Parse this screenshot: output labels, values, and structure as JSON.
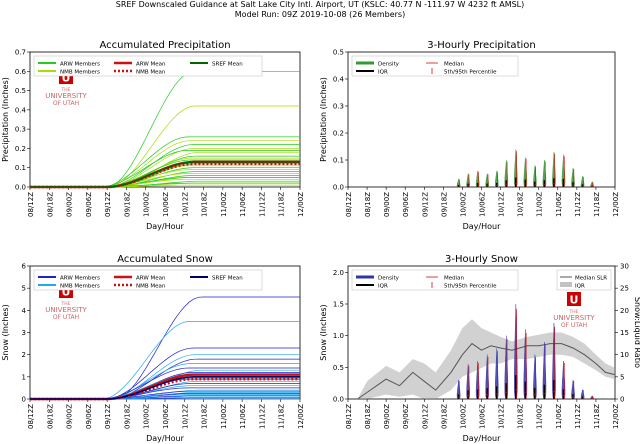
{
  "header": {
    "line1": "SREF Downscaled Guidance at Salt Lake City Intl. Airport, UT (KSLC: 40.77 N -111.97 W 4232 ft AMSL)",
    "line2": "Model Run: 09Z 2019-10-08 (26 Members)"
  },
  "logo": {
    "the": "THE",
    "name": "UNIVERSITY",
    "of": "OF UTAH",
    "letter": "U"
  },
  "colors": {
    "arw_precip": "#22cc22",
    "nmb_precip": "#aadd00",
    "sref_precip": "#006600",
    "arw_snow": "#2222cc",
    "nmb_snow": "#22aaee",
    "sref_snow": "#000066",
    "mean": "#cc1111",
    "median": "#cc1111",
    "violin_precip": "#339933",
    "violin_snow": "#3333aa"
  },
  "chart_data": [
    {
      "id": "acc_precip",
      "type": "line",
      "title": "Accumulated Precipitation",
      "xlabel": "Day/Hour",
      "ylabel": "Precipitation (Inches)",
      "x": [
        "08/12Z",
        "08/18Z",
        "09/00Z",
        "09/06Z",
        "09/12Z",
        "09/18Z",
        "10/00Z",
        "10/06Z",
        "10/12Z",
        "10/18Z",
        "11/00Z",
        "11/06Z",
        "11/12Z",
        "11/18Z",
        "12/00Z"
      ],
      "ylim": [
        0,
        0.7
      ],
      "yticks": [
        "0.0",
        "0.1",
        "0.2",
        "0.3",
        "0.4",
        "0.5",
        "0.6",
        "0.7"
      ],
      "legend": [
        "ARW Members",
        "NMB Members",
        "ARW Mean",
        "NMB Mean",
        "SREF Mean"
      ],
      "member_finals": [
        0.6,
        0.42,
        0.26,
        0.24,
        0.22,
        0.2,
        0.19,
        0.18,
        0.16,
        0.15,
        0.14,
        0.13,
        0.12,
        0.11,
        0.1,
        0.09,
        0.08,
        0.07,
        0.06,
        0.05,
        0.05,
        0.04,
        0.03,
        0.02,
        0.02,
        0.01
      ],
      "arw_mean_final": 0.13,
      "nmb_mean_final": 0.12,
      "sref_mean_final": 0.13
    },
    {
      "id": "three_hr_precip",
      "type": "violin",
      "title": "3-Hourly Precipitation",
      "xlabel": "Day/Hour",
      "ylabel": "Precipitation (Inches)",
      "x": [
        "08/12Z",
        "08/18Z",
        "09/00Z",
        "09/06Z",
        "09/12Z",
        "09/18Z",
        "10/00Z",
        "10/06Z",
        "10/12Z",
        "10/18Z",
        "11/00Z",
        "11/06Z",
        "11/12Z",
        "11/18Z",
        "12/00Z"
      ],
      "ylim": [
        0,
        0.5
      ],
      "yticks": [
        "0.0",
        "0.1",
        "0.2",
        "0.3",
        "0.4",
        "0.5"
      ],
      "legend": [
        "Density",
        "IQR",
        "Median",
        "5th/95th Percentile"
      ],
      "violins": [
        {
          "t": 5.8,
          "max": 0.03
        },
        {
          "t": 6.3,
          "max": 0.05
        },
        {
          "t": 6.8,
          "max": 0.06
        },
        {
          "t": 7.3,
          "max": 0.05
        },
        {
          "t": 7.8,
          "max": 0.06
        },
        {
          "t": 8.3,
          "max": 0.1
        },
        {
          "t": 8.8,
          "max": 0.14
        },
        {
          "t": 9.3,
          "max": 0.11
        },
        {
          "t": 9.8,
          "max": 0.08
        },
        {
          "t": 10.3,
          "max": 0.1
        },
        {
          "t": 10.8,
          "max": 0.13
        },
        {
          "t": 11.3,
          "max": 0.12
        },
        {
          "t": 11.8,
          "max": 0.07
        },
        {
          "t": 12.3,
          "max": 0.04
        },
        {
          "t": 12.8,
          "max": 0.02
        }
      ]
    },
    {
      "id": "acc_snow",
      "type": "line",
      "title": "Accumulated Snow",
      "xlabel": "Day/Hour",
      "ylabel": "Snow (Inches)",
      "x": [
        "08/12Z",
        "08/18Z",
        "09/00Z",
        "09/06Z",
        "09/12Z",
        "09/18Z",
        "10/00Z",
        "10/06Z",
        "10/12Z",
        "10/18Z",
        "11/00Z",
        "11/06Z",
        "11/12Z",
        "11/18Z",
        "12/00Z"
      ],
      "ylim": [
        0,
        6
      ],
      "yticks": [
        "0",
        "1",
        "2",
        "3",
        "4",
        "5",
        "6"
      ],
      "legend": [
        "ARW Members",
        "NMB Members",
        "ARW Mean",
        "NMB Mean",
        "SREF Mean"
      ],
      "member_finals": [
        4.6,
        3.5,
        2.3,
        2.0,
        1.8,
        1.6,
        1.4,
        1.3,
        1.2,
        1.1,
        1.0,
        0.95,
        0.9,
        0.8,
        0.7,
        0.6,
        0.5,
        0.4,
        0.35,
        0.3,
        0.25,
        0.2,
        0.15,
        0.1,
        0.05,
        0.0
      ],
      "arw_mean_final": 1.1,
      "nmb_mean_final": 0.9,
      "sref_mean_final": 1.0
    },
    {
      "id": "three_hr_snow",
      "type": "violin",
      "title": "3-Hourly Snow",
      "xlabel": "Day/Hour",
      "ylabel": "Snow (Inches)",
      "y2label": "Snow:Liquid Ratio",
      "x": [
        "08/12Z",
        "08/18Z",
        "09/00Z",
        "09/06Z",
        "09/12Z",
        "09/18Z",
        "10/00Z",
        "10/06Z",
        "10/12Z",
        "10/18Z",
        "11/00Z",
        "11/06Z",
        "11/12Z",
        "11/18Z",
        "12/00Z"
      ],
      "ylim": [
        0,
        2.1
      ],
      "yticks": [
        "0.0",
        "0.5",
        "1.0",
        "1.5",
        "2.0"
      ],
      "y2lim": [
        0,
        30
      ],
      "y2ticks": [
        "0",
        "5",
        "10",
        "15",
        "20",
        "25",
        "30"
      ],
      "legend": [
        "Density",
        "IQR",
        "Median",
        "5th/95th Percentile",
        "Median SLR",
        "IQR"
      ],
      "violins": [
        {
          "t": 5.8,
          "max": 0.3
        },
        {
          "t": 6.3,
          "max": 0.55
        },
        {
          "t": 6.8,
          "max": 0.6
        },
        {
          "t": 7.3,
          "max": 0.7
        },
        {
          "t": 7.8,
          "max": 0.8
        },
        {
          "t": 8.3,
          "max": 1.0
        },
        {
          "t": 8.8,
          "max": 1.5
        },
        {
          "t": 9.3,
          "max": 1.1
        },
        {
          "t": 9.8,
          "max": 0.7
        },
        {
          "t": 10.3,
          "max": 0.9
        },
        {
          "t": 10.8,
          "max": 1.2
        },
        {
          "t": 11.3,
          "max": 0.6
        },
        {
          "t": 11.8,
          "max": 0.3
        },
        {
          "t": 12.3,
          "max": 0.15
        },
        {
          "t": 12.8,
          "max": 0.05
        }
      ],
      "slr_median": [
        [
          0.5,
          0
        ],
        [
          1,
          1.5
        ],
        [
          2,
          4.5
        ],
        [
          2.7,
          3
        ],
        [
          3.4,
          6
        ],
        [
          4,
          4
        ],
        [
          4.6,
          2
        ],
        [
          5.4,
          6
        ],
        [
          6,
          10
        ],
        [
          6.5,
          12.5
        ],
        [
          7,
          11
        ],
        [
          7.5,
          12
        ],
        [
          8,
          11.5
        ],
        [
          8.6,
          11
        ],
        [
          9.4,
          12
        ],
        [
          10,
          12
        ],
        [
          10.6,
          12.5
        ],
        [
          11.2,
          12.5
        ],
        [
          11.8,
          11.5
        ],
        [
          12.4,
          10
        ],
        [
          13,
          8
        ],
        [
          13.5,
          6
        ],
        [
          14,
          5.5
        ]
      ],
      "slr_low": [
        [
          0.5,
          0
        ],
        [
          1,
          0
        ],
        [
          2,
          1
        ],
        [
          2.7,
          0.5
        ],
        [
          3.4,
          1
        ],
        [
          4,
          0
        ],
        [
          4.6,
          0
        ],
        [
          5.4,
          2
        ],
        [
          6,
          5
        ],
        [
          6.5,
          6
        ],
        [
          7,
          7
        ],
        [
          7.5,
          8
        ],
        [
          8,
          8
        ],
        [
          8.6,
          9
        ],
        [
          9.4,
          9
        ],
        [
          10,
          9.5
        ],
        [
          10.6,
          10
        ],
        [
          11.2,
          10
        ],
        [
          11.8,
          9.5
        ],
        [
          12.4,
          8
        ],
        [
          13,
          6.5
        ],
        [
          13.5,
          5
        ],
        [
          14,
          4.5
        ]
      ],
      "slr_high": [
        [
          0.5,
          0
        ],
        [
          1,
          4
        ],
        [
          2,
          7.5
        ],
        [
          2.7,
          6
        ],
        [
          3.4,
          9
        ],
        [
          4,
          8
        ],
        [
          4.6,
          6
        ],
        [
          5.4,
          11
        ],
        [
          6,
          16
        ],
        [
          6.5,
          18
        ],
        [
          7,
          16
        ],
        [
          7.5,
          15
        ],
        [
          8,
          14
        ],
        [
          8.6,
          13
        ],
        [
          9.4,
          14
        ],
        [
          10,
          14.5
        ],
        [
          10.6,
          15
        ],
        [
          11.2,
          15
        ],
        [
          11.8,
          14
        ],
        [
          12.4,
          12.5
        ],
        [
          13,
          10
        ],
        [
          13.5,
          8
        ],
        [
          14,
          7
        ]
      ]
    }
  ]
}
